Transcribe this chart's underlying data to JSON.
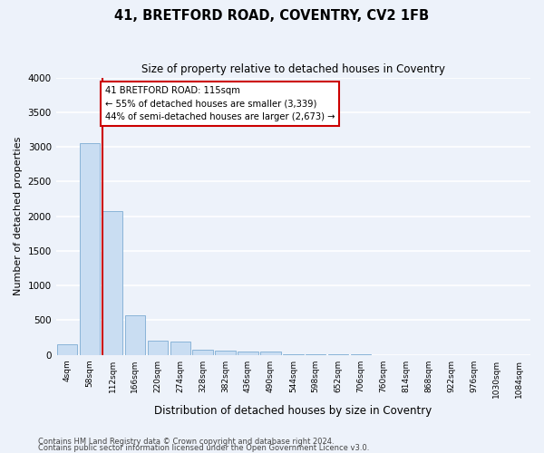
{
  "title": "41, BRETFORD ROAD, COVENTRY, CV2 1FB",
  "subtitle": "Size of property relative to detached houses in Coventry",
  "xlabel": "Distribution of detached houses by size in Coventry",
  "ylabel": "Number of detached properties",
  "bin_labels": [
    "4sqm",
    "58sqm",
    "112sqm",
    "166sqm",
    "220sqm",
    "274sqm",
    "328sqm",
    "382sqm",
    "436sqm",
    "490sqm",
    "544sqm",
    "598sqm",
    "652sqm",
    "706sqm",
    "760sqm",
    "814sqm",
    "868sqm",
    "922sqm",
    "976sqm",
    "1030sqm",
    "1084sqm"
  ],
  "bar_heights": [
    150,
    3050,
    2075,
    570,
    200,
    190,
    80,
    65,
    50,
    45,
    5,
    5,
    5,
    5,
    0,
    0,
    0,
    0,
    0,
    0,
    0
  ],
  "bar_color": "#c9ddf2",
  "bar_edgecolor": "#8ab4d8",
  "marker_color": "#cc0000",
  "annotation_text": "41 BRETFORD ROAD: 115sqm\n← 55% of detached houses are smaller (3,339)\n44% of semi-detached houses are larger (2,673) →",
  "annotation_box_color": "#ffffff",
  "annotation_box_edgecolor": "#cc0000",
  "ylim": [
    0,
    4000
  ],
  "yticks": [
    0,
    500,
    1000,
    1500,
    2000,
    2500,
    3000,
    3500,
    4000
  ],
  "background_color": "#edf2fa",
  "grid_color": "#ffffff",
  "footer1": "Contains HM Land Registry data © Crown copyright and database right 2024.",
  "footer2": "Contains public sector information licensed under the Open Government Licence v3.0."
}
